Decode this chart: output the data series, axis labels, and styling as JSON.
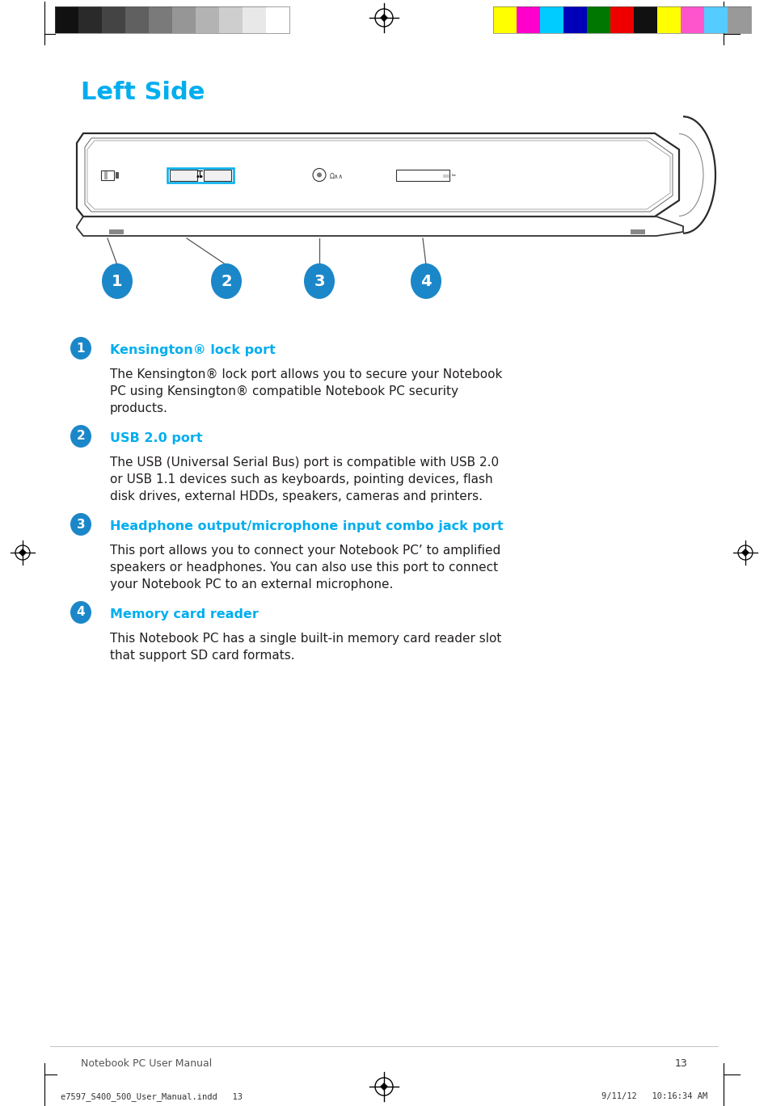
{
  "bg_color": "#ffffff",
  "title": "Left Side",
  "title_color": "#00AEEF",
  "title_fontsize": 22,
  "section_header_color": "#00AEEF",
  "section_header_fontsize": 11.5,
  "body_fontsize": 11,
  "body_color": "#231F20",
  "circle_color": "#1B87C9",
  "items": [
    {
      "num": "1",
      "header": "Kensington® lock port",
      "body_lines": [
        "The Kensington® lock port allows you to secure your Notebook",
        "PC using Kensington® compatible Notebook PC security",
        "products."
      ]
    },
    {
      "num": "2",
      "header": "USB 2.0 port",
      "body_lines": [
        "The USB (Universal Serial Bus) port is compatible with USB 2.0",
        "or USB 1.1 devices such as keyboards, pointing devices, flash",
        "disk drives, external HDDs, speakers, cameras and printers."
      ]
    },
    {
      "num": "3",
      "header": "Headphone output/microphone input combo jack port",
      "body_lines": [
        "This port allows you to connect your Notebook PC’ to amplified",
        "speakers or headphones. You can also use this port to connect",
        "your Notebook PC to an external microphone."
      ]
    },
    {
      "num": "4",
      "header": "Memory card reader",
      "body_lines": [
        "This Notebook PC has a single built-in memory card reader slot",
        "that support SD card formats."
      ]
    }
  ],
  "footer_center": "Notebook PC User Manual",
  "footer_page": "13",
  "footer_file": "e7597_S400_500_User_Manual.indd   13",
  "footer_date": "9/11/12   10:16:34 AM",
  "grayscale_colors": [
    "#111111",
    "#2a2a2a",
    "#444444",
    "#606060",
    "#7a7a7a",
    "#969696",
    "#b3b3b3",
    "#cecece",
    "#e8e8e8",
    "#ffffff"
  ],
  "cmyk_colors": [
    "#FFFF00",
    "#FF00CC",
    "#00CCFF",
    "#0000BB",
    "#007700",
    "#EE0000",
    "#111111",
    "#FFFF00",
    "#FF55CC",
    "#55CCFF",
    "#999999"
  ]
}
